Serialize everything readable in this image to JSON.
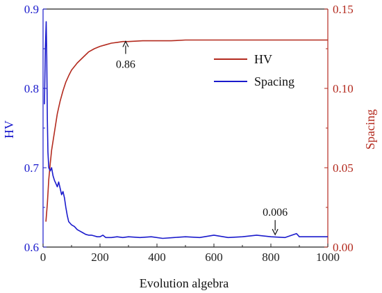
{
  "chart_data": {
    "type": "line",
    "xlabel": "Evolution algebra",
    "ylabel_left": "HV",
    "ylabel_right": "Spacing",
    "xlim": [
      0,
      1000
    ],
    "ylim_left": [
      0.6,
      0.9
    ],
    "ylim_right": [
      0.0,
      0.15
    ],
    "x_ticks": [
      "0",
      "200",
      "400",
      "600",
      "800",
      "1000"
    ],
    "y_left_ticks": [
      "0.6",
      "0.7",
      "0.8",
      "0.9"
    ],
    "y_right_ticks": [
      "0.00",
      "0.05",
      "0.10",
      "0.15"
    ],
    "legend_position": "top-right",
    "grid": false,
    "series": [
      {
        "name": "HV",
        "axis": "left",
        "color": "#b32a1e",
        "x": [
          10,
          15,
          20,
          25,
          30,
          40,
          50,
          60,
          70,
          80,
          90,
          100,
          120,
          140,
          160,
          180,
          200,
          220,
          240,
          260,
          280,
          300,
          350,
          400,
          450,
          500,
          550,
          600,
          650,
          700,
          750,
          800,
          850,
          900,
          950,
          1000
        ],
        "y": [
          0.632,
          0.655,
          0.685,
          0.705,
          0.722,
          0.745,
          0.768,
          0.784,
          0.797,
          0.808,
          0.816,
          0.823,
          0.832,
          0.839,
          0.846,
          0.85,
          0.853,
          0.855,
          0.857,
          0.858,
          0.859,
          0.859,
          0.86,
          0.86,
          0.86,
          0.861,
          0.861,
          0.861,
          0.861,
          0.861,
          0.861,
          0.861,
          0.861,
          0.861,
          0.861,
          0.861
        ]
      },
      {
        "name": "Spacing",
        "axis": "right",
        "color": "#1a1acc",
        "x": [
          5,
          8,
          11,
          13,
          15,
          17,
          20,
          25,
          30,
          35,
          40,
          45,
          50,
          55,
          60,
          65,
          70,
          75,
          80,
          85,
          90,
          100,
          110,
          120,
          130,
          140,
          150,
          160,
          170,
          180,
          190,
          200,
          210,
          220,
          240,
          260,
          280,
          300,
          340,
          380,
          420,
          460,
          500,
          550,
          600,
          650,
          700,
          750,
          800,
          850,
          890,
          900,
          950,
          1000
        ],
        "y": [
          0.09,
          0.125,
          0.142,
          0.12,
          0.08,
          0.06,
          0.05,
          0.048,
          0.05,
          0.045,
          0.042,
          0.04,
          0.038,
          0.041,
          0.037,
          0.033,
          0.035,
          0.031,
          0.025,
          0.02,
          0.016,
          0.014,
          0.013,
          0.011,
          0.01,
          0.009,
          0.008,
          0.0075,
          0.0075,
          0.007,
          0.0065,
          0.0065,
          0.0075,
          0.006,
          0.006,
          0.0065,
          0.006,
          0.0065,
          0.006,
          0.0065,
          0.0055,
          0.006,
          0.0065,
          0.006,
          0.0075,
          0.006,
          0.0065,
          0.0075,
          0.0065,
          0.006,
          0.0085,
          0.0065,
          0.0065,
          0.0065
        ]
      }
    ],
    "annotations": [
      {
        "text": "0.86",
        "series": "HV",
        "x": 290,
        "y": 0.861
      },
      {
        "text": "0.006",
        "series": "Spacing",
        "x": 815,
        "y": 0.0065
      }
    ]
  }
}
